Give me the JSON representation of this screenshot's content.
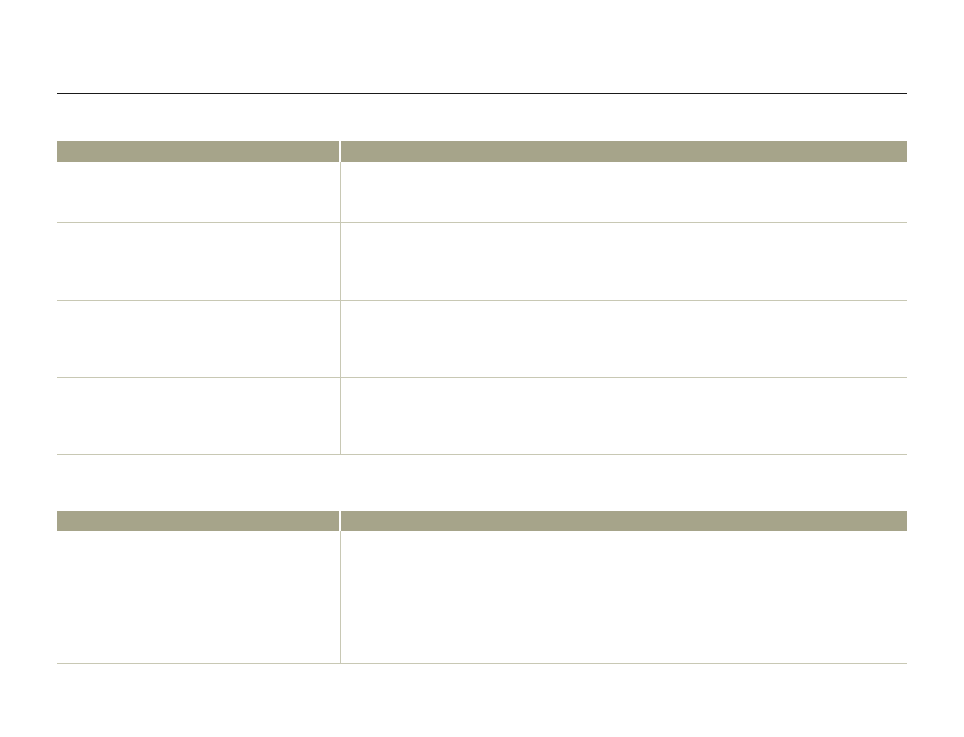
{
  "colors": {
    "header_bg": "#a6a48a",
    "grid_line": "#c8c8b4",
    "top_rule": "#1a1a1a"
  },
  "table1": {
    "header": [
      "",
      ""
    ],
    "rows": [
      [
        "",
        ""
      ],
      [
        "",
        ""
      ],
      [
        "",
        ""
      ],
      [
        "",
        ""
      ]
    ]
  },
  "table2": {
    "header": [
      "",
      ""
    ],
    "rows": [
      [
        "",
        ""
      ]
    ]
  }
}
